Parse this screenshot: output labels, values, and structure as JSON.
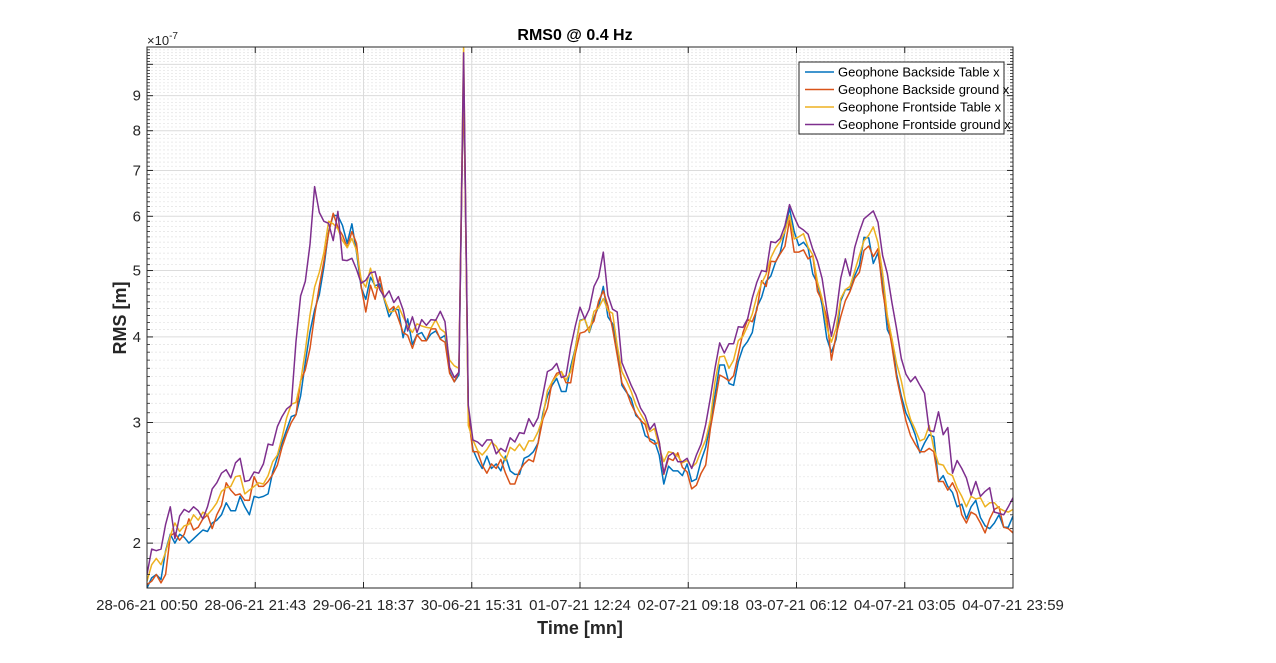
{
  "chart_data": {
    "type": "line",
    "title": "RMS0 @ 0.4 Hz",
    "xlabel": "Time [mn]",
    "ylabel": "RMS [m]",
    "y_exponent_label": "×10",
    "y_exponent_power": "-7",
    "yscale": "log",
    "ylim": [
      1.72,
      10.6
    ],
    "grid": true,
    "legend_position": "top-right",
    "x_ticks": [
      "28-06-21 00:50",
      "28-06-21 21:43",
      "29-06-21 18:37",
      "30-06-21 15:31",
      "01-07-21 12:24",
      "02-07-21 09:18",
      "03-07-21 06:12",
      "04-07-21 03:05",
      "04-07-21 23:59"
    ],
    "y_ticks": [
      2,
      3,
      4,
      5,
      6,
      7,
      8,
      9
    ],
    "series": [
      {
        "name": "Geophone Backside Table x",
        "color": "#0072BD",
        "values": [
          1.72,
          1.78,
          1.8,
          1.77,
          1.95,
          2.06,
          2.0,
          2.06,
          2.04,
          2.0,
          2.03,
          2.06,
          2.09,
          2.08,
          2.14,
          2.16,
          2.2,
          2.29,
          2.23,
          2.23,
          2.34,
          2.26,
          2.2,
          2.34,
          2.33,
          2.34,
          2.36,
          2.54,
          2.67,
          2.8,
          2.93,
          3.06,
          3.08,
          3.28,
          3.67,
          4.07,
          4.38,
          4.61,
          5.06,
          5.7,
          6.02,
          6.01,
          5.82,
          5.48,
          5.85,
          5.32,
          4.72,
          4.54,
          4.89,
          4.75,
          4.78,
          4.52,
          4.28,
          4.4,
          4.38,
          3.99,
          4.25,
          3.9,
          4.03,
          4.06,
          3.95,
          4.04,
          4.08,
          3.98,
          4.02,
          3.56,
          3.44,
          3.52,
          9.8,
          3.09,
          2.74,
          2.64,
          2.57,
          2.68,
          2.57,
          2.61,
          2.55,
          2.68,
          2.55,
          2.52,
          2.52,
          2.66,
          2.68,
          2.72,
          2.8,
          3.09,
          3.28,
          3.4,
          3.48,
          3.33,
          3.33,
          3.62,
          3.85,
          4.23,
          4.25,
          4.06,
          4.27,
          4.43,
          4.74,
          4.28,
          4.18,
          3.86,
          3.4,
          3.32,
          3.25,
          3.07,
          3.03,
          2.87,
          2.84,
          2.82,
          2.69,
          2.44,
          2.59,
          2.55,
          2.55,
          2.51,
          2.61,
          2.46,
          2.48,
          2.64,
          2.76,
          2.99,
          3.29,
          3.64,
          3.64,
          3.42,
          3.4,
          3.68,
          3.86,
          3.94,
          4.06,
          4.42,
          4.57,
          4.82,
          4.91,
          5.14,
          5.31,
          5.7,
          6.17,
          5.7,
          5.44,
          5.5,
          5.39,
          4.94,
          4.79,
          4.45,
          3.98,
          3.8,
          3.97,
          4.51,
          4.69,
          4.69,
          4.91,
          5.09,
          5.59,
          5.58,
          5.12,
          5.31,
          4.8,
          4.1,
          3.97,
          3.53,
          3.28,
          3.1,
          3.0,
          2.88,
          2.71,
          2.8,
          2.88,
          2.86,
          2.46,
          2.51,
          2.42,
          2.37,
          2.26,
          2.28,
          2.17,
          2.26,
          2.31,
          2.18,
          2.12,
          2.1,
          2.14,
          2.2,
          2.11,
          2.11,
          2.19
        ]
      },
      {
        "name": "Geophone Backside ground x",
        "color": "#D95319",
        "values": [
          1.74,
          1.76,
          1.8,
          1.75,
          1.8,
          2.05,
          2.07,
          2.02,
          2.06,
          2.17,
          2.09,
          2.11,
          2.17,
          2.2,
          2.1,
          2.2,
          2.27,
          2.45,
          2.39,
          2.35,
          2.36,
          2.31,
          2.31,
          2.5,
          2.42,
          2.42,
          2.46,
          2.52,
          2.6,
          2.76,
          2.89,
          3.0,
          3.08,
          3.45,
          3.58,
          3.85,
          4.3,
          4.74,
          5.16,
          5.67,
          6.06,
          5.78,
          5.63,
          5.4,
          5.7,
          5.48,
          4.74,
          4.35,
          4.76,
          4.54,
          4.9,
          4.54,
          4.37,
          4.43,
          4.25,
          4.06,
          4.02,
          3.85,
          4.03,
          3.95,
          3.95,
          4.11,
          4.11,
          3.97,
          3.93,
          3.54,
          3.44,
          3.56,
          9.7,
          3.07,
          2.72,
          2.72,
          2.6,
          2.53,
          2.61,
          2.57,
          2.65,
          2.53,
          2.44,
          2.44,
          2.55,
          2.61,
          2.65,
          2.63,
          2.8,
          3.03,
          3.15,
          3.44,
          3.54,
          3.56,
          3.43,
          3.43,
          3.78,
          4.05,
          4.07,
          4.13,
          4.22,
          4.51,
          4.67,
          4.44,
          4.11,
          3.76,
          3.43,
          3.33,
          3.19,
          3.09,
          3.02,
          2.98,
          2.82,
          2.79,
          2.81,
          2.52,
          2.66,
          2.64,
          2.71,
          2.58,
          2.54,
          2.4,
          2.43,
          2.53,
          2.6,
          2.94,
          3.21,
          3.52,
          3.49,
          3.45,
          3.51,
          3.77,
          4.06,
          4.24,
          4.21,
          4.38,
          4.83,
          4.74,
          5.16,
          5.15,
          5.29,
          5.42,
          5.92,
          5.32,
          5.32,
          5.36,
          5.2,
          5.26,
          4.66,
          4.52,
          4.27,
          3.7,
          4.02,
          4.28,
          4.52,
          4.66,
          4.87,
          4.97,
          5.35,
          5.43,
          5.24,
          5.38,
          4.67,
          4.25,
          3.88,
          3.49,
          3.24,
          3.02,
          2.87,
          2.79,
          2.72,
          2.72,
          2.75,
          2.72,
          2.46,
          2.46,
          2.39,
          2.45,
          2.37,
          2.2,
          2.14,
          2.22,
          2.2,
          2.14,
          2.07,
          2.17,
          2.24,
          2.26,
          2.11,
          2.1,
          2.07
        ]
      },
      {
        "name": "Geophone Frontside Table x",
        "color": "#EDB120",
        "values": [
          1.76,
          1.86,
          1.9,
          1.86,
          1.94,
          2.05,
          2.14,
          2.08,
          2.12,
          2.13,
          2.2,
          2.16,
          2.22,
          2.2,
          2.24,
          2.29,
          2.38,
          2.41,
          2.42,
          2.5,
          2.51,
          2.36,
          2.39,
          2.42,
          2.45,
          2.44,
          2.51,
          2.63,
          2.69,
          2.85,
          3.05,
          3.19,
          3.21,
          3.44,
          3.82,
          4.31,
          4.73,
          4.97,
          5.31,
          5.9,
          5.85,
          5.75,
          5.53,
          5.4,
          5.57,
          5.35,
          4.85,
          4.73,
          5.04,
          4.72,
          4.72,
          4.55,
          4.35,
          4.36,
          4.44,
          4.28,
          4.15,
          4.06,
          4.18,
          4.15,
          4.13,
          4.12,
          4.24,
          4.11,
          4.06,
          3.7,
          3.63,
          3.6,
          10.6,
          2.97,
          2.83,
          2.73,
          2.69,
          2.74,
          2.81,
          2.77,
          2.69,
          2.64,
          2.76,
          2.73,
          2.79,
          2.73,
          2.82,
          2.82,
          2.91,
          3.05,
          3.34,
          3.44,
          3.51,
          3.56,
          3.46,
          3.56,
          3.84,
          4.22,
          4.25,
          4.07,
          4.36,
          4.41,
          4.55,
          4.37,
          4.33,
          3.89,
          3.56,
          3.45,
          3.33,
          3.18,
          3.09,
          3.01,
          2.91,
          2.94,
          2.76,
          2.63,
          2.72,
          2.71,
          2.68,
          2.62,
          2.64,
          2.58,
          2.62,
          2.73,
          2.83,
          3.03,
          3.44,
          3.74,
          3.75,
          3.6,
          3.7,
          3.95,
          4.01,
          4.15,
          4.32,
          4.59,
          4.79,
          4.94,
          5.22,
          5.39,
          5.51,
          5.7,
          6.02,
          5.56,
          5.6,
          5.66,
          5.41,
          5.27,
          4.81,
          4.55,
          4.13,
          3.93,
          4.12,
          4.55,
          4.69,
          4.74,
          4.99,
          5.26,
          5.53,
          5.63,
          5.79,
          5.49,
          4.96,
          4.3,
          3.98,
          3.66,
          3.45,
          3.2,
          3.03,
          2.93,
          2.82,
          2.84,
          2.97,
          2.75,
          2.61,
          2.6,
          2.53,
          2.51,
          2.41,
          2.34,
          2.26,
          2.34,
          2.32,
          2.33,
          2.26,
          2.29,
          2.29,
          2.25,
          2.23,
          2.22,
          2.24
        ]
      },
      {
        "name": "Geophone Frontside ground x",
        "color": "#7E2F8E",
        "values": [
          1.8,
          1.96,
          1.95,
          1.96,
          2.13,
          2.26,
          2.03,
          2.19,
          2.24,
          2.22,
          2.26,
          2.23,
          2.17,
          2.26,
          2.4,
          2.45,
          2.53,
          2.56,
          2.49,
          2.62,
          2.66,
          2.46,
          2.47,
          2.54,
          2.53,
          2.61,
          2.79,
          2.78,
          2.96,
          3.06,
          3.14,
          3.18,
          3.94,
          4.59,
          4.82,
          5.46,
          6.63,
          6.08,
          5.9,
          5.86,
          5.53,
          6.1,
          5.18,
          5.17,
          5.21,
          5.02,
          4.79,
          4.84,
          4.96,
          4.98,
          4.69,
          4.57,
          4.67,
          4.49,
          4.58,
          4.38,
          4.08,
          4.28,
          4.06,
          4.24,
          4.16,
          4.24,
          4.23,
          4.36,
          4.21,
          3.61,
          3.49,
          3.55,
          10.4,
          3.18,
          2.83,
          2.81,
          2.77,
          2.83,
          2.83,
          2.7,
          2.75,
          2.72,
          2.85,
          2.81,
          2.9,
          2.89,
          3.04,
          2.96,
          3.05,
          3.29,
          3.56,
          3.59,
          3.66,
          3.49,
          3.51,
          3.86,
          4.15,
          4.42,
          4.25,
          4.39,
          4.74,
          4.89,
          5.32,
          4.6,
          4.39,
          4.35,
          3.67,
          3.53,
          3.4,
          3.29,
          3.15,
          3.07,
          2.93,
          2.99,
          2.81,
          2.53,
          2.68,
          2.71,
          2.63,
          2.63,
          2.66,
          2.57,
          2.69,
          2.79,
          2.98,
          3.26,
          3.6,
          3.92,
          3.79,
          3.91,
          3.91,
          4.14,
          4.13,
          4.25,
          4.56,
          4.81,
          5.0,
          4.98,
          5.51,
          5.49,
          5.57,
          5.81,
          6.24,
          5.99,
          5.79,
          5.73,
          5.65,
          5.37,
          5.16,
          4.87,
          4.38,
          4.01,
          4.32,
          4.87,
          5.2,
          4.91,
          5.4,
          5.7,
          5.95,
          6.03,
          6.11,
          5.88,
          5.26,
          4.95,
          4.49,
          4.11,
          3.72,
          3.53,
          3.44,
          3.5,
          3.4,
          3.31,
          2.92,
          2.91,
          3.11,
          2.88,
          2.95,
          2.53,
          2.64,
          2.57,
          2.49,
          2.35,
          2.46,
          2.34,
          2.38,
          2.41,
          2.22,
          2.21,
          2.2,
          2.26,
          2.33
        ]
      }
    ]
  }
}
